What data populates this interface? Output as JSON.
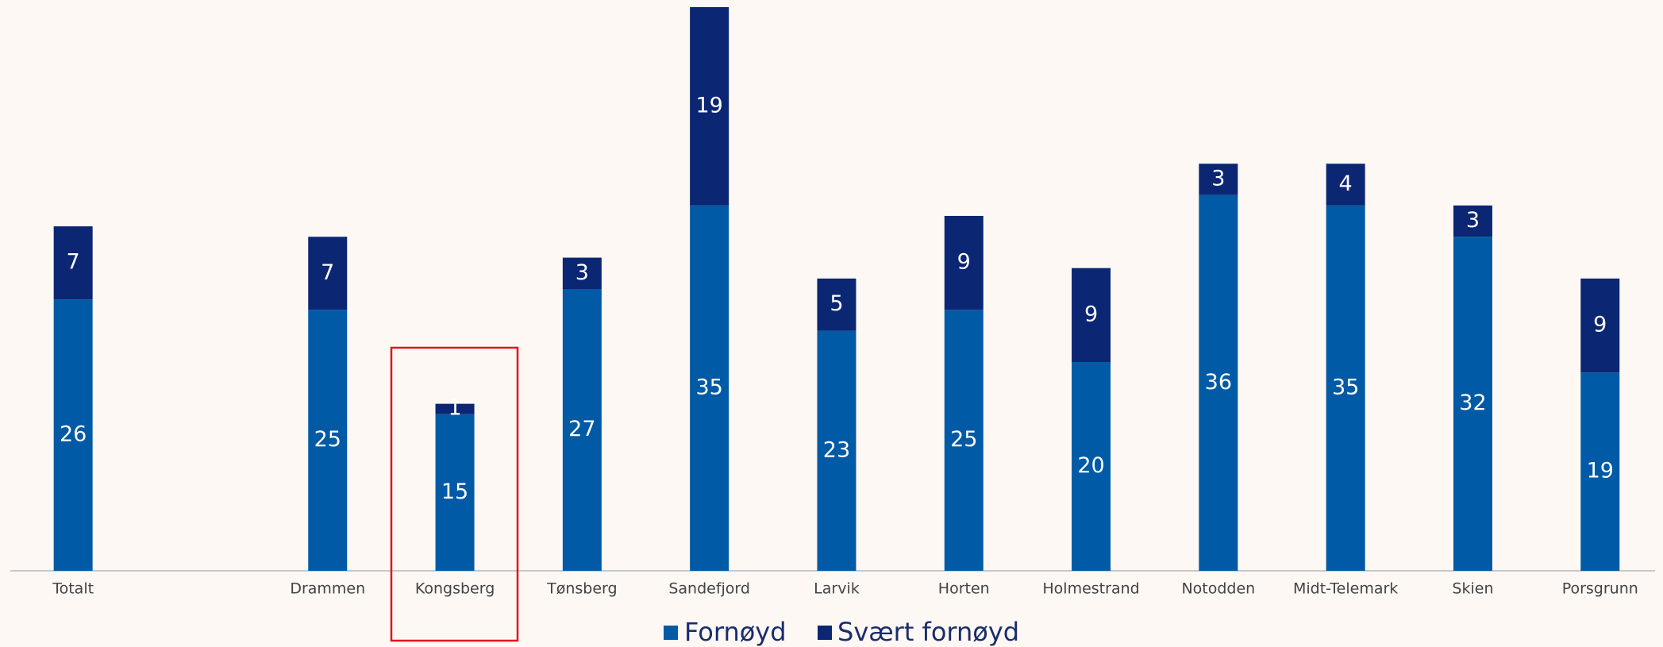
{
  "chart_data": {
    "type": "bar",
    "stacked": true,
    "categories": [
      "Totalt",
      null,
      "Drammen",
      "Kongsberg",
      "Tønsberg",
      "Sandefjord",
      "Larvik",
      "Horten",
      "Holmestrand",
      "Notodden",
      "Midt-Telemark",
      "Skien",
      "Porsgrunn"
    ],
    "series": [
      {
        "name": "Fornøyd",
        "color": "#005aa5",
        "values": [
          26,
          null,
          25,
          15,
          27,
          35,
          23,
          25,
          20,
          36,
          35,
          32,
          19
        ]
      },
      {
        "name": "Svært fornøyd",
        "color": "#0b2672",
        "values": [
          7,
          null,
          7,
          1,
          3,
          19,
          5,
          9,
          9,
          3,
          4,
          3,
          9
        ]
      }
    ],
    "legend": "bottom"
  }
}
